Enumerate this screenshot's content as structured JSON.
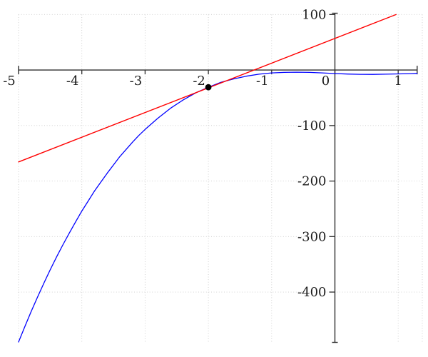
{
  "figure": {
    "background": "#ffffff",
    "description": "Plot of a curve with its tangent line at x = -2 and a marked point of tangency"
  },
  "chart_data": {
    "type": "line",
    "title": "",
    "xlabel": "",
    "ylabel": "",
    "x_range": [
      -5,
      1.3
    ],
    "y_range": [
      -490,
      100
    ],
    "grid": {
      "on": true,
      "style": "dotted",
      "color": "#cccccc"
    },
    "legend": "none",
    "axis_color": "#2e2e2e",
    "x_ticks": [
      {
        "value": -5,
        "label": "-5"
      },
      {
        "value": -4,
        "label": "-4"
      },
      {
        "value": -3,
        "label": "-3"
      },
      {
        "value": -2,
        "label": "-2"
      },
      {
        "value": -1,
        "label": "-1"
      },
      {
        "value": 0,
        "label": "0"
      },
      {
        "value": 1,
        "label": "1"
      }
    ],
    "y_ticks": [
      {
        "value": 100,
        "label": "100"
      },
      {
        "value": -100,
        "label": "-100"
      },
      {
        "value": -200,
        "label": "-200"
      },
      {
        "value": -300,
        "label": "-300"
      },
      {
        "value": -400,
        "label": "-400"
      }
    ],
    "series": [
      {
        "name": "function-curve",
        "color": "#0000ff",
        "width": 1.3,
        "points": [
          [
            -5,
            -490
          ],
          [
            -4.9,
            -462
          ],
          [
            -4.8,
            -435
          ],
          [
            -4.7,
            -409
          ],
          [
            -4.6,
            -384
          ],
          [
            -4.5,
            -360
          ],
          [
            -4.4,
            -337
          ],
          [
            -4.3,
            -315
          ],
          [
            -4.2,
            -294
          ],
          [
            -4.1,
            -274
          ],
          [
            -4,
            -254
          ],
          [
            -3.9,
            -236
          ],
          [
            -3.8,
            -218
          ],
          [
            -3.7,
            -202
          ],
          [
            -3.6,
            -186
          ],
          [
            -3.5,
            -171
          ],
          [
            -3.4,
            -156
          ],
          [
            -3.3,
            -143
          ],
          [
            -3.2,
            -130
          ],
          [
            -3.1,
            -118
          ],
          [
            -3,
            -107
          ],
          [
            -2.8,
            -87
          ],
          [
            -2.6,
            -69
          ],
          [
            -2.4,
            -54
          ],
          [
            -2.2,
            -41
          ],
          [
            -2,
            -31
          ],
          [
            -1.8,
            -22
          ],
          [
            -1.6,
            -16
          ],
          [
            -1.4,
            -11
          ],
          [
            -1.2,
            -7.5
          ],
          [
            -1,
            -5.2
          ],
          [
            -0.8,
            -4.2
          ],
          [
            -0.6,
            -3.9
          ],
          [
            -0.4,
            -4.3
          ],
          [
            -0.2,
            -5.2
          ],
          [
            0,
            -6.3
          ],
          [
            0.2,
            -7.2
          ],
          [
            0.4,
            -7.7
          ],
          [
            0.6,
            -7.8
          ],
          [
            0.8,
            -7.5
          ],
          [
            1,
            -7
          ],
          [
            1.2,
            -6.4
          ],
          [
            1.3,
            -6.1
          ]
        ]
      },
      {
        "name": "tangent-line",
        "color": "#ff0000",
        "width": 1.4,
        "slope": 44.5,
        "intercept": 57,
        "clip_y_max": 100,
        "points": [
          [
            -5,
            -165.5
          ],
          [
            0.966,
            100
          ]
        ]
      }
    ],
    "point_marker": {
      "x": -2,
      "y": -31,
      "color": "#000000",
      "radius_px": 4.4
    }
  }
}
